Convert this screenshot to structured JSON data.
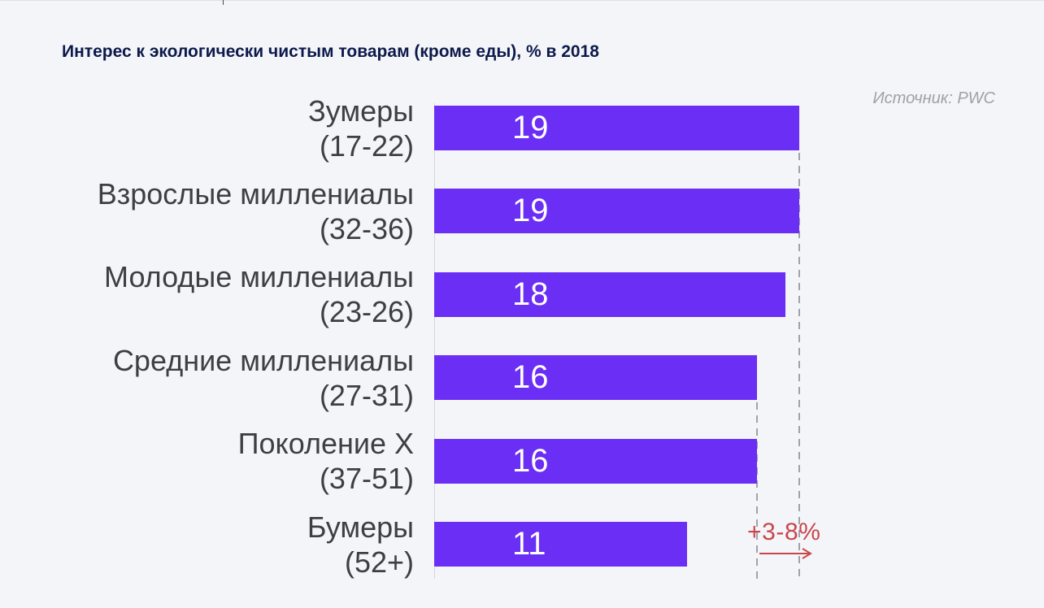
{
  "chart_data": {
    "type": "bar",
    "orientation": "horizontal",
    "title": "Интерес к экологически чистым товарам (кроме еды), % в 2018",
    "source": "Источник: PWC",
    "categories": [
      "Зумеры",
      "Взрослые миллениалы",
      "Молодые миллениалы",
      "Средние миллениалы",
      "Поколение Х",
      "Бумеры"
    ],
    "category_ages": [
      "(17-22)",
      "(32-36)",
      "(23-26)",
      "(27-31)",
      "(37-51)",
      "(52+)"
    ],
    "values": [
      19,
      19,
      18,
      16,
      16,
      11
    ],
    "xlim": [
      -7,
      19
    ],
    "grid": false,
    "guide_lines": [
      19,
      16
    ],
    "annotation": "+3-8%",
    "colors": {
      "background": "#f4f5f9",
      "title": "#0c1a4b",
      "bar": "#6b2ef4",
      "value_label": "#ffffff",
      "guide_line": "#a2a2aa",
      "annotation": "#c8474b"
    }
  }
}
